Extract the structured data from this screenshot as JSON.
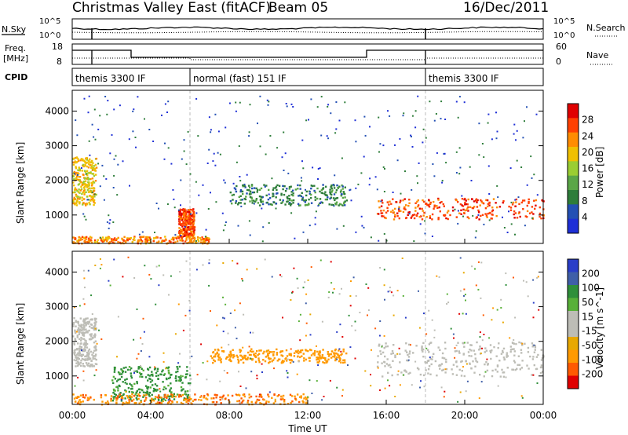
{
  "header": {
    "station": "Christmas Valley East (fitACF)",
    "beam": "Beam 05",
    "date": "16/Dec/2011"
  },
  "strips": {
    "nsky_label": "N.Sky",
    "nsearch_label": "N.Search",
    "noise_ticks": [
      "10^5",
      "10^0"
    ],
    "freq_label": "Freq.",
    "freq_unit": "[MHz]",
    "freq_ticks": [
      "18",
      "8"
    ],
    "nave_label": "Nave",
    "nave_ticks": [
      "60",
      "0"
    ],
    "cpid_label": "CPID",
    "modes": [
      {
        "label": "themis 3300 IF",
        "start_h": 0.0
      },
      {
        "label": "normal (fast) 151 IF",
        "start_h": 6.0
      },
      {
        "label": "themis 3300 IF",
        "start_h": 18.0
      }
    ]
  },
  "colors": {
    "power": [
      "#1e2fd6",
      "#2350b4",
      "#2e7d3a",
      "#5aa647",
      "#9acd32",
      "#f0c000",
      "#ff8c00",
      "#ff4000",
      "#e00000"
    ],
    "velocity": [
      "#e00000",
      "#ff5a00",
      "#ff9a00",
      "#e8a800",
      "#bdbdb6",
      "#bdbdb6",
      "#58b038",
      "#2f8f3a",
      "#3f5fa8",
      "#2a3ec8"
    ]
  },
  "chart_data": [
    {
      "type": "heatmap",
      "panel": "power",
      "x_range": [
        "00:00",
        "24:00"
      ],
      "xticks": [
        "00:00",
        "04:00",
        "08:00",
        "12:00",
        "16:00",
        "20:00",
        "00:00"
      ],
      "ylabel": "Slant Range [km]",
      "yticks": [
        1000,
        2000,
        3000,
        4000
      ],
      "ylim": [
        180,
        4600
      ],
      "colorbar": {
        "label": "Power [dB]",
        "ticks": [
          4,
          8,
          12,
          16,
          20,
          24,
          28
        ],
        "range": [
          0,
          32
        ]
      },
      "features": [
        {
          "t": [
            0.0,
            1.2
          ],
          "range_km": [
            1300,
            2700
          ],
          "dB": 20
        },
        {
          "t": [
            5.4,
            6.2
          ],
          "range_km": [
            400,
            1200
          ],
          "dB": 26
        },
        {
          "t": [
            0.0,
            7.0
          ],
          "range_km": [
            200,
            400
          ],
          "dB": 24
        },
        {
          "t": [
            8.0,
            14.0
          ],
          "range_km": [
            1300,
            1900
          ],
          "dB": 8
        },
        {
          "t": [
            15.5,
            24.0
          ],
          "range_km": [
            900,
            1500
          ],
          "dB": 28
        }
      ]
    },
    {
      "type": "heatmap",
      "panel": "velocity",
      "x_range": [
        "00:00",
        "24:00"
      ],
      "xticks": [
        "00:00",
        "04:00",
        "08:00",
        "12:00",
        "16:00",
        "20:00",
        "00:00"
      ],
      "xlabel": "Time UT",
      "ylabel": "Slant Range [km]",
      "yticks": [
        1000,
        2000,
        3000,
        4000
      ],
      "ylim": [
        180,
        4600
      ],
      "colorbar": {
        "label": "Velocity [m s^-1]",
        "ticks": [
          200,
          100,
          50,
          15,
          -15,
          -50,
          -100,
          -200
        ]
      },
      "features": [
        {
          "t": [
            0.0,
            1.2
          ],
          "range_km": [
            1300,
            2700
          ],
          "velocity": 0
        },
        {
          "t": [
            2.0,
            6.0
          ],
          "range_km": [
            300,
            1300
          ],
          "velocity": 40
        },
        {
          "t": [
            7.0,
            14.0
          ],
          "range_km": [
            1400,
            1800
          ],
          "velocity": -60
        },
        {
          "t": [
            15.5,
            24.0
          ],
          "range_km": [
            1000,
            2000
          ],
          "velocity": 0
        },
        {
          "t": [
            0.0,
            12.0
          ],
          "range_km": [
            200,
            500
          ],
          "velocity": -70
        }
      ]
    }
  ]
}
